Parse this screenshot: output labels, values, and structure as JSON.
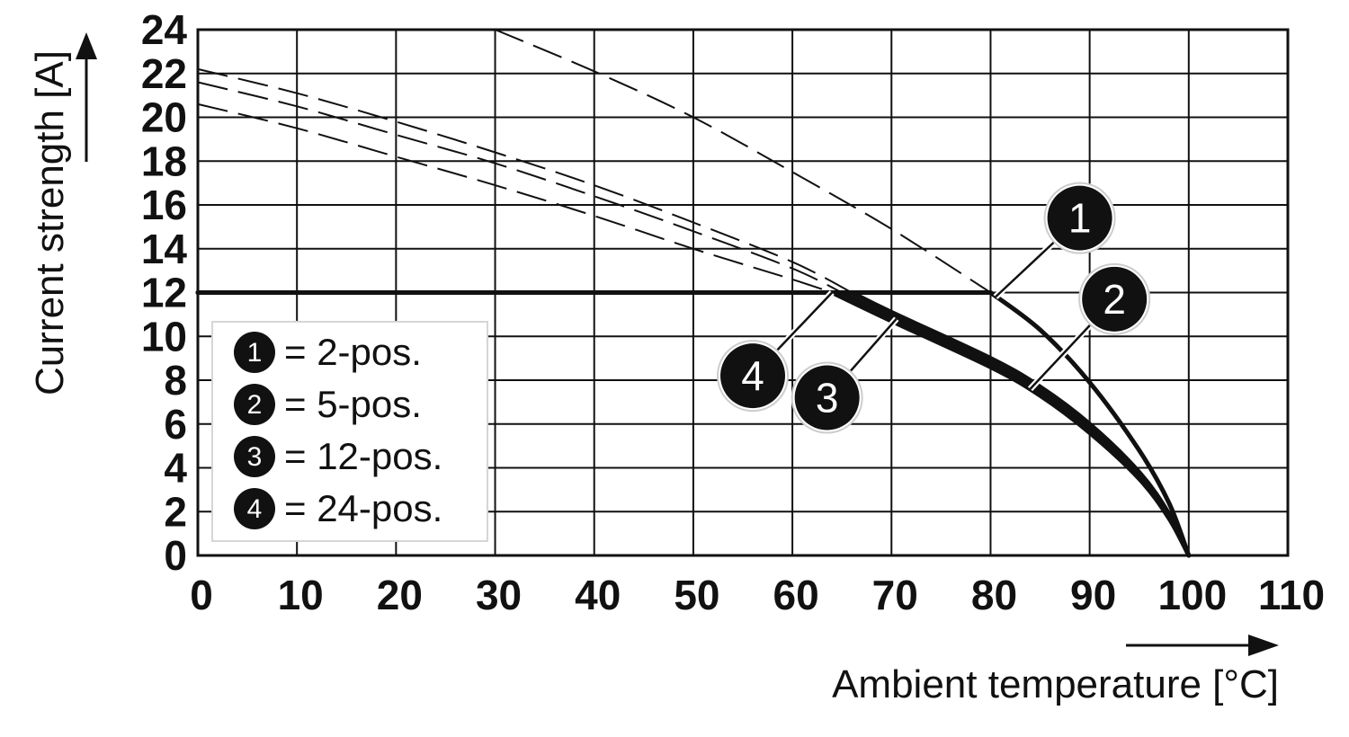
{
  "chart_data": {
    "type": "line",
    "xlabel": "Ambient temperature [°C]",
    "ylabel": "Current strength [A]",
    "xlim": [
      0,
      110
    ],
    "ylim": [
      0,
      24
    ],
    "x_ticks": [
      0,
      10,
      20,
      30,
      40,
      50,
      60,
      70,
      80,
      90,
      100,
      110
    ],
    "y_ticks": [
      0,
      2,
      4,
      6,
      8,
      10,
      12,
      14,
      16,
      18,
      20,
      22,
      24
    ],
    "grid": true,
    "legend_position": "bottom-left",
    "current_limit": 12,
    "series": [
      {
        "id": "1",
        "legend_label": "= 2-pos.",
        "derating": [
          [
            0,
            12
          ],
          [
            80,
            12
          ],
          [
            85,
            10.3
          ],
          [
            90,
            7.9
          ],
          [
            95,
            4.8
          ],
          [
            98,
            2.4
          ],
          [
            100,
            0
          ]
        ],
        "theoretical": [
          [
            30,
            24
          ],
          [
            40,
            22.1
          ],
          [
            50,
            20.0
          ],
          [
            60,
            17.5
          ],
          [
            70,
            14.9
          ],
          [
            80,
            12
          ]
        ]
      },
      {
        "id": "2",
        "legend_label": "= 5-pos.",
        "derating": [
          [
            0,
            12
          ],
          [
            66,
            12
          ],
          [
            70,
            11.1
          ],
          [
            80,
            9.0
          ],
          [
            85,
            7.7
          ],
          [
            90,
            6.0
          ],
          [
            95,
            3.8
          ],
          [
            98,
            1.9
          ],
          [
            100,
            0
          ]
        ],
        "theoretical": [
          [
            0,
            22.2
          ],
          [
            10,
            21.1
          ],
          [
            20,
            19.8
          ],
          [
            30,
            18.4
          ],
          [
            40,
            16.9
          ],
          [
            50,
            15.2
          ],
          [
            60,
            13.4
          ],
          [
            66,
            12
          ]
        ]
      },
      {
        "id": "3",
        "legend_label": "= 12-pos.",
        "derating": [
          [
            0,
            12
          ],
          [
            65,
            12
          ],
          [
            70,
            10.9
          ],
          [
            80,
            8.8
          ],
          [
            85,
            7.5
          ],
          [
            90,
            5.8
          ],
          [
            95,
            3.6
          ],
          [
            98,
            1.8
          ],
          [
            100,
            0
          ]
        ],
        "theoretical": [
          [
            0,
            21.6
          ],
          [
            10,
            20.5
          ],
          [
            20,
            19.2
          ],
          [
            30,
            17.9
          ],
          [
            40,
            16.4
          ],
          [
            50,
            14.8
          ],
          [
            60,
            13.1
          ],
          [
            65,
            12
          ]
        ]
      },
      {
        "id": "4",
        "legend_label": "= 24-pos.",
        "derating": [
          [
            0,
            12
          ],
          [
            64,
            12
          ],
          [
            70,
            10.7
          ],
          [
            80,
            8.6
          ],
          [
            85,
            7.3
          ],
          [
            90,
            5.6
          ],
          [
            95,
            3.5
          ],
          [
            98,
            1.7
          ],
          [
            100,
            0
          ]
        ],
        "theoretical": [
          [
            0,
            20.6
          ],
          [
            10,
            19.5
          ],
          [
            20,
            18.2
          ],
          [
            30,
            16.9
          ],
          [
            40,
            15.5
          ],
          [
            50,
            14.0
          ],
          [
            60,
            12.6
          ],
          [
            64,
            12
          ]
        ]
      }
    ],
    "callouts": [
      {
        "label": "1",
        "point": [
          80.5,
          11.8
        ],
        "badge": [
          89,
          15.4
        ]
      },
      {
        "label": "2",
        "point": [
          84,
          7.6
        ],
        "badge": [
          92.5,
          11.7
        ]
      },
      {
        "label": "3",
        "point": [
          70.5,
          10.8
        ],
        "badge": [
          63.5,
          7.2
        ]
      },
      {
        "label": "4",
        "point": [
          64,
          12
        ],
        "badge": [
          56,
          8.2
        ]
      }
    ],
    "colors": {
      "line": "#111111",
      "grid": "#111111",
      "badge": "#111111",
      "badge_text": "#ffffff",
      "background": "#ffffff"
    }
  }
}
